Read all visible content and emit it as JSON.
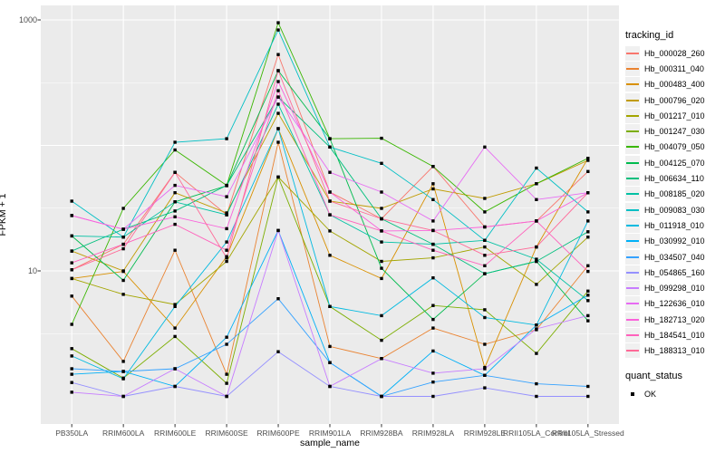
{
  "chart_data": {
    "type": "line",
    "title": "",
    "xlabel": "sample_name",
    "ylabel": "FPKM + 1",
    "y_scale": "log10",
    "y_ticks": [
      {
        "label": "1000",
        "value": 1000
      },
      {
        "label": "10",
        "value": 10
      }
    ],
    "ylim": [
      0.6,
      1100
    ],
    "grid": "white major+minor gridlines on gray panel, legend right",
    "categories": [
      "PB350LA",
      "RRIM600LA",
      "RRIM600LE",
      "RRIM600SE",
      "RRIM600PE",
      "RRIM901LA",
      "RRIM928BA",
      "RRIM928LA",
      "RRIM928LE",
      "RRII105LA_Control",
      "RRII105LA_Stressed"
    ],
    "series": [
      {
        "name": "Hb_000028_260",
        "color": "#F8766D",
        "values": [
          10.2,
          16.3,
          61,
          28,
          530,
          42.5,
          26,
          68,
          22.4,
          25,
          62
        ]
      },
      {
        "name": "Hb_000311_040",
        "color": "#EA8331",
        "values": [
          6.3,
          1.9,
          14.6,
          1.5,
          106,
          2.5,
          2.0,
          3.5,
          2.6,
          3.4,
          11
        ]
      },
      {
        "name": "Hb_000483_400",
        "color": "#D89000",
        "values": [
          8.7,
          9.9,
          3.5,
          13,
          136,
          13.3,
          8.7,
          49.5,
          1.7,
          15.5,
          79
        ]
      },
      {
        "name": "Hb_000796_020",
        "color": "#C09B00",
        "values": [
          14.4,
          10,
          42,
          29,
          180,
          36,
          31.5,
          45,
          37.8,
          49.5,
          76
        ]
      },
      {
        "name": "Hb_001217_010",
        "color": "#A3A500",
        "values": [
          8.7,
          6.5,
          5.4,
          11.9,
          56,
          20.8,
          11.9,
          12.7,
          15.5,
          7.8,
          18.6
        ]
      },
      {
        "name": "Hb_001247_030",
        "color": "#7CAE00",
        "values": [
          2.4,
          1.4,
          3.0,
          1.27,
          56,
          5.2,
          2.8,
          5.3,
          4.9,
          2.2,
          6.9
        ]
      },
      {
        "name": "Hb_004079_050",
        "color": "#39B600",
        "values": [
          3.75,
          31.5,
          92,
          48,
          950,
          113,
          114,
          68,
          29.5,
          49.5,
          79
        ]
      },
      {
        "name": "Hb_004125_070",
        "color": "#00BB4E",
        "values": [
          19,
          8.4,
          35.5,
          47.7,
          394,
          113,
          10.5,
          4.1,
          9.5,
          11.9,
          4.0
        ]
      },
      {
        "name": "Hb_006634_110",
        "color": "#00BF7D",
        "values": [
          14.4,
          21.5,
          30,
          48,
          243,
          97,
          26,
          16.3,
          9.5,
          11.9,
          20.5
        ]
      },
      {
        "name": "Hb_008185_020",
        "color": "#00C1A3",
        "values": [
          19,
          18.6,
          35.5,
          28,
          213,
          28,
          17,
          16.3,
          17.5,
          12.4,
          5.8
        ]
      },
      {
        "name": "Hb_009083_030",
        "color": "#00BFC4",
        "values": [
          36,
          18.6,
          106,
          113,
          832,
          97,
          72,
          37,
          17.5,
          66,
          29.5
        ]
      },
      {
        "name": "Hb_011918_010",
        "color": "#00BAE0",
        "values": [
          2.1,
          1.38,
          5.2,
          17,
          136,
          5.2,
          4.4,
          8.8,
          4.25,
          3.7,
          25
        ]
      },
      {
        "name": "Hb_030992_010",
        "color": "#00B0F6",
        "values": [
          1.5,
          1.58,
          1.2,
          2.96,
          21,
          1.86,
          1.0,
          2.3,
          1.47,
          3.7,
          6.4
        ]
      },
      {
        "name": "Hb_034507_040",
        "color": "#35A2FF",
        "values": [
          1.66,
          1.58,
          1.66,
          2.6,
          6.0,
          1.86,
          1.0,
          1.3,
          1.47,
          1.26,
          1.2
        ]
      },
      {
        "name": "Hb_054865_160",
        "color": "#9590FF",
        "values": [
          1.29,
          1.0,
          1.2,
          1.0,
          2.27,
          1.2,
          1.0,
          1.0,
          1.17,
          1.0,
          1.0
        ]
      },
      {
        "name": "Hb_099298_010",
        "color": "#C77CFF",
        "values": [
          1.08,
          1.0,
          1.66,
          1.0,
          21,
          1.2,
          2.0,
          1.53,
          1.66,
          3.45,
          4.4
        ]
      },
      {
        "name": "Hb_122636_010",
        "color": "#E76BF3",
        "values": [
          27.6,
          21.5,
          48,
          39,
          243,
          61,
          42.5,
          25,
          97,
          37,
          42
        ]
      },
      {
        "name": "Hb_182713_020",
        "color": "#FA62DB",
        "values": [
          27.6,
          21.5,
          27,
          21.7,
          323,
          42.5,
          20.8,
          21,
          22.4,
          25,
          42
        ]
      },
      {
        "name": "Hb_184541_010",
        "color": "#FF62BC",
        "values": [
          11.6,
          16.3,
          23.5,
          14.6,
          273,
          28,
          20.8,
          14.6,
          11,
          25,
          9.9
        ]
      },
      {
        "name": "Hb_188313_010",
        "color": "#FF6A98",
        "values": [
          10.2,
          15,
          61,
          12.7,
          394,
          36,
          26,
          21,
          13.3,
          15.5,
          42
        ]
      }
    ],
    "legend": {
      "tracking_title": "tracking_id",
      "quant_title": "quant_status",
      "quant_items": [
        {
          "label": "OK"
        }
      ],
      "position": "right"
    }
  },
  "colors": {
    "background": "#FFFFFF",
    "panel": "#EBEBEB",
    "gridline": "#FFFFFF",
    "axis_text": "#4D4D4D",
    "title_text": "#000000",
    "point": "#000000",
    "legend_key_bg": "#F0F0F0",
    "tick_mark": "#333333"
  }
}
